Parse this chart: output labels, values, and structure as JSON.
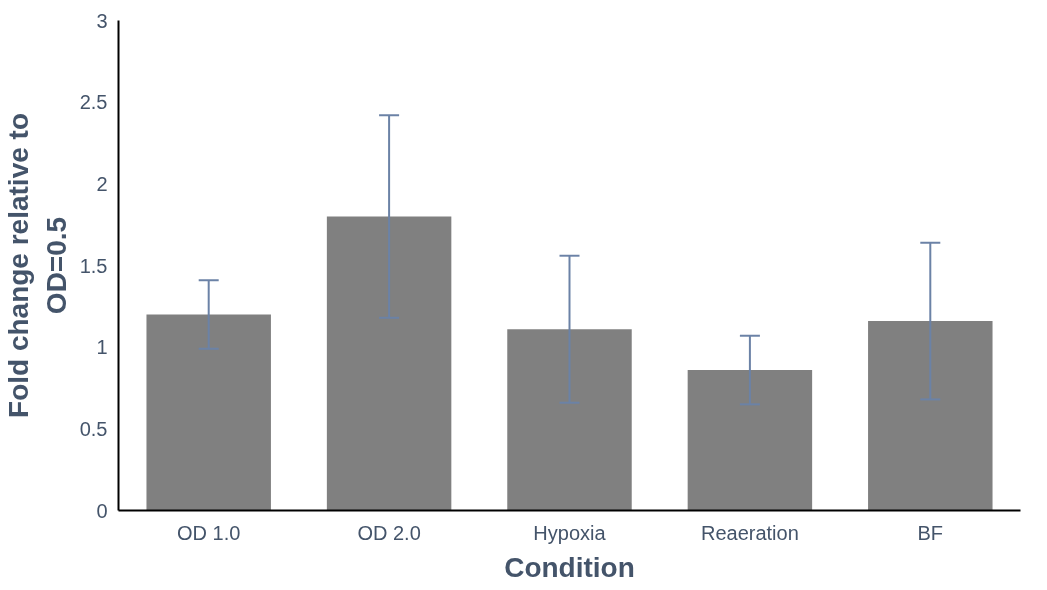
{
  "chart_data": {
    "type": "bar",
    "xlabel": "Condition",
    "ylabel": "Fold change relative to\nOD=0.5",
    "categories": [
      "OD 1.0",
      "OD 2.0",
      "Hypoxia",
      "Reaeration",
      "BF"
    ],
    "values": [
      1.2,
      1.8,
      1.11,
      0.86,
      1.16
    ],
    "errors": [
      0.21,
      0.62,
      0.45,
      0.21,
      0.48
    ],
    "color": "#808080",
    "ylim": [
      0,
      3
    ],
    "yticks": [
      0,
      0.5,
      1,
      1.5,
      2,
      2.5,
      3
    ],
    "grid": false
  }
}
